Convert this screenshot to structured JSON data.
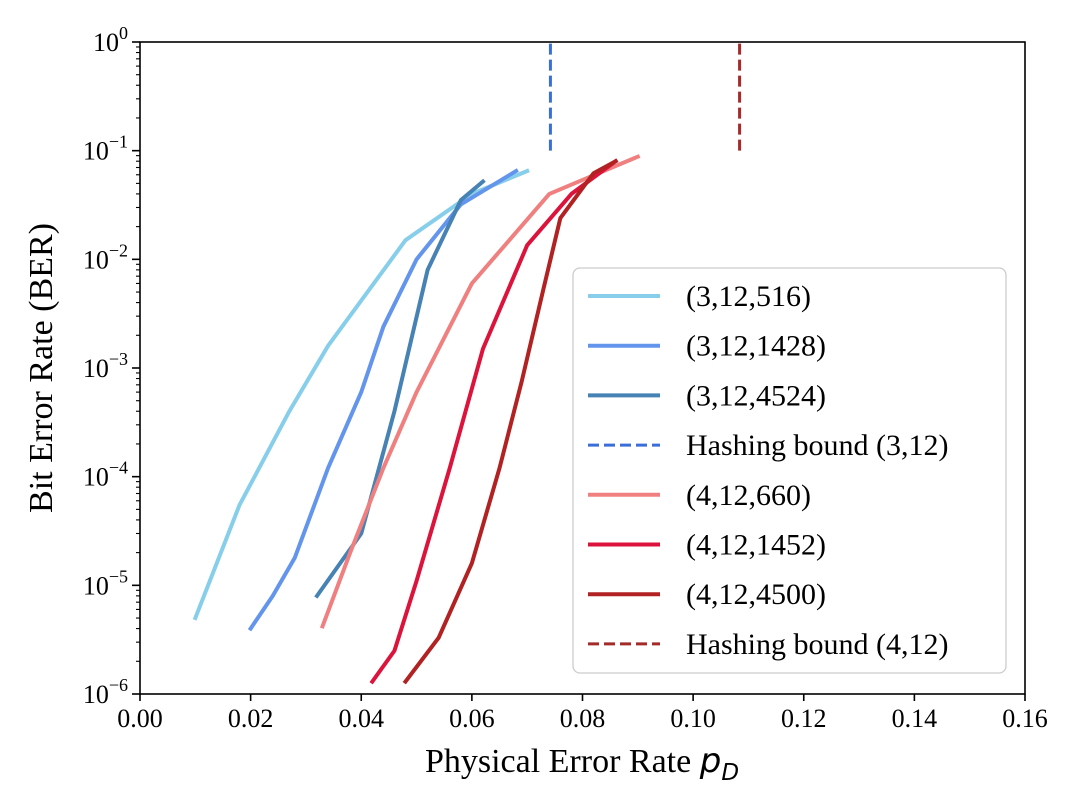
{
  "chart_data": {
    "type": "line",
    "xlabel": "Physical Error Rate",
    "xlabel_symbol": "p",
    "xlabel_subscript": "D",
    "ylabel": "Bit Error Rate (BER)",
    "xscale": "linear",
    "yscale": "log",
    "xlim": [
      0.0,
      0.16
    ],
    "ylim": [
      1e-06,
      1.0
    ],
    "xticks": [
      0.0,
      0.02,
      0.04,
      0.06,
      0.08,
      0.1,
      0.12,
      0.14,
      0.16
    ],
    "xtick_labels": [
      "0.00",
      "0.02",
      "0.04",
      "0.06",
      "0.08",
      "0.10",
      "0.12",
      "0.14",
      "0.16"
    ],
    "yticks": [
      {
        "value": 1.0,
        "base": "10",
        "exp": "0"
      },
      {
        "value": 0.1,
        "base": "10",
        "exp": "−1"
      },
      {
        "value": 0.01,
        "base": "10",
        "exp": "−2"
      },
      {
        "value": 0.001,
        "base": "10",
        "exp": "−3"
      },
      {
        "value": 0.0001,
        "base": "10",
        "exp": "−4"
      },
      {
        "value": 1e-05,
        "base": "10",
        "exp": "−5"
      },
      {
        "value": 1e-06,
        "base": "10",
        "exp": "−6"
      }
    ],
    "grid": false,
    "legend_position": "lower-right",
    "series": [
      {
        "name": "(3,12,516)",
        "color": "#87CEEB",
        "style": "solid",
        "x": [
          0.01,
          0.018,
          0.027,
          0.034,
          0.048,
          0.06,
          0.07
        ],
        "y": [
          5e-06,
          5.5e-05,
          0.0004,
          0.0016,
          0.015,
          0.04,
          0.065
        ]
      },
      {
        "name": "(3,12,1428)",
        "color": "#6495ED",
        "style": "solid",
        "x": [
          0.02,
          0.024,
          0.028,
          0.034,
          0.04,
          0.044,
          0.05,
          0.058,
          0.068
        ],
        "y": [
          4e-06,
          8e-06,
          1.8e-05,
          0.00012,
          0.0006,
          0.0024,
          0.01,
          0.032,
          0.065
        ]
      },
      {
        "name": "(3,12,4524)",
        "color": "#4682B4",
        "style": "solid",
        "x": [
          0.032,
          0.04,
          0.046,
          0.052,
          0.058,
          0.062
        ],
        "y": [
          8e-06,
          3e-05,
          0.0004,
          0.008,
          0.035,
          0.052
        ]
      },
      {
        "name": "Hashing bound (3,12)",
        "color": "#3A6FD8",
        "style": "dashed",
        "x": [
          0.0742,
          0.0742
        ],
        "y": [
          0.1,
          1.0
        ]
      },
      {
        "name": "(4,12,660)",
        "color": "#F08080",
        "style": "solid",
        "x": [
          0.033,
          0.038,
          0.044,
          0.05,
          0.06,
          0.074,
          0.09
        ],
        "y": [
          4.2e-06,
          2e-05,
          0.00012,
          0.0006,
          0.006,
          0.04,
          0.088
        ]
      },
      {
        "name": "(4,12,1452)",
        "color": "#DC143C",
        "style": "solid",
        "x": [
          0.042,
          0.046,
          0.05,
          0.056,
          0.062,
          0.07,
          0.078,
          0.086
        ],
        "y": [
          1.3e-06,
          2.5e-06,
          1.1e-05,
          0.00012,
          0.0015,
          0.0135,
          0.04,
          0.08
        ]
      },
      {
        "name": "(4,12,4500)",
        "color": "#B22222",
        "style": "solid",
        "x": [
          0.048,
          0.054,
          0.06,
          0.065,
          0.069,
          0.073,
          0.076,
          0.082,
          0.086
        ],
        "y": [
          1.3e-06,
          3.3e-06,
          1.6e-05,
          0.00012,
          0.00075,
          0.0055,
          0.024,
          0.062,
          0.08
        ]
      },
      {
        "name": "Hashing bound (4,12)",
        "color": "#A52A2A",
        "style": "dashed",
        "x": [
          0.1084,
          0.1084
        ],
        "y": [
          0.1,
          1.0
        ]
      }
    ]
  }
}
